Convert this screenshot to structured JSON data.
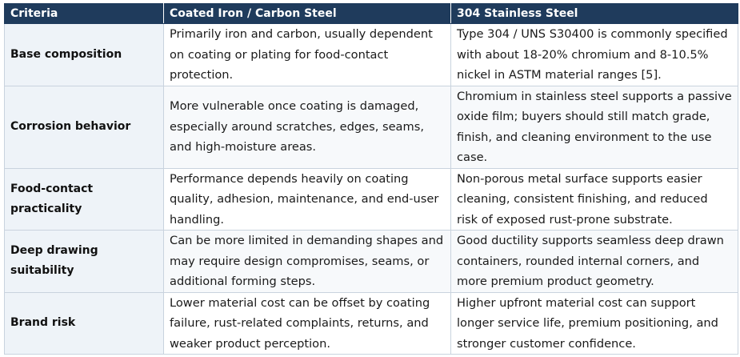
{
  "table": {
    "headers": [
      "Criteria",
      "Coated Iron / Carbon Steel",
      "304 Stainless Steel"
    ],
    "rows": [
      {
        "criteria": "Base composition",
        "coated": "Primarily iron and carbon, usually dependent on coating or plating for food-contact protection.",
        "stainless": "Type 304 / UNS S30400 is commonly specified with about 18-20% chromium and 8-10.5% nickel in ASTM material ranges [5]."
      },
      {
        "criteria": "Corrosion behavior",
        "coated": "More vulnerable once coating is damaged, especially around scratches, edges, seams, and high-moisture areas.",
        "stainless": "Chromium in stainless steel supports a passive oxide film; buyers should still match grade, finish, and cleaning environment to the use case."
      },
      {
        "criteria": "Food-contact practicality",
        "coated": "Performance depends heavily on coating quality, adhesion, maintenance, and end-user handling.",
        "stainless": "Non-porous metal surface supports easier cleaning, consistent finishing, and reduced risk of exposed rust-prone substrate."
      },
      {
        "criteria": "Deep drawing suitability",
        "coated": "Can be more limited in demanding shapes and may require design compromises, seams, or additional forming steps.",
        "stainless": "Good ductility supports seamless deep drawn containers, rounded internal corners, and more premium product geometry."
      },
      {
        "criteria": "Brand risk",
        "coated": "Lower material cost can be offset by coating failure, rust-related complaints, returns, and weaker product perception.",
        "stainless": "Higher upfront material cost can support longer service life, premium positioning, and stronger customer confidence."
      }
    ]
  }
}
